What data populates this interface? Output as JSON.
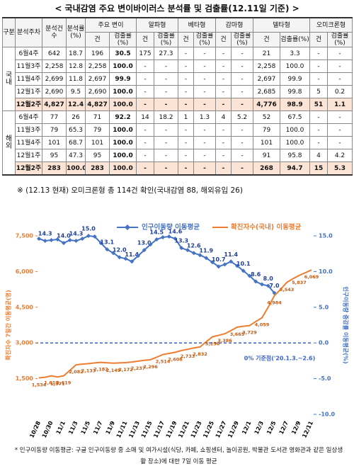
{
  "title": "< 국내감염 주요 변이바이러스 분석률 및 검출률(12.11일 기준) >",
  "table": {
    "header": [
      "구분",
      "분석주차",
      "분석건수",
      "분석률(%)",
      "주요 변이",
      "알파형",
      "베타형",
      "감마형",
      "델타형",
      "오미크론형"
    ],
    "subheader": [
      "건",
      "검출률(%)",
      "건",
      "검출률(%)",
      "건",
      "검출률(%)",
      "건",
      "검출률(%)",
      "건",
      "검출률(%)",
      "건",
      "검출률(%)"
    ],
    "groups": [
      {
        "label": "국내",
        "rows": [
          [
            "6월4주",
            "642",
            "18.7",
            "196",
            "30.5",
            "175",
            "27.3",
            "-",
            "-",
            "-",
            "-",
            "21",
            "3.3",
            "-",
            "-"
          ],
          [
            "11월3주",
            "2,258",
            "12.8",
            "2,258",
            "100.0",
            "-",
            "-",
            "-",
            "-",
            "-",
            "-",
            "2,258",
            "100.0",
            "-",
            "-"
          ],
          [
            "11월4주",
            "2,699",
            "11.8",
            "2,697",
            "99.9",
            "-",
            "-",
            "-",
            "-",
            "-",
            "-",
            "2,697",
            "99.9",
            "-",
            "-"
          ],
          [
            "12월1주",
            "2,690",
            "9.5",
            "2,690",
            "100.0",
            "-",
            "-",
            "-",
            "-",
            "-",
            "-",
            "2,685",
            "99.8",
            "5",
            "0.2"
          ],
          [
            "12월2주",
            "4,827",
            "12.4",
            "4,827",
            "100.0",
            "-",
            "-",
            "-",
            "-",
            "-",
            "-",
            "4,776",
            "98.9",
            "51",
            "1.1"
          ]
        ]
      },
      {
        "label": "해외",
        "rows": [
          [
            "6월4주",
            "77",
            "26",
            "71",
            "92.2",
            "14",
            "18.2",
            "1",
            "1.3",
            "4",
            "5.2",
            "52",
            "67.5",
            "-",
            "-"
          ],
          [
            "11월3주",
            "79",
            "65.3",
            "79",
            "100.0",
            "-",
            "-",
            "-",
            "-",
            "-",
            "-",
            "79",
            "100.0",
            "-",
            "-"
          ],
          [
            "11월4주",
            "101",
            "68.7",
            "101",
            "100.0",
            "-",
            "-",
            "-",
            "-",
            "-",
            "-",
            "101",
            "100.0",
            "-",
            "-"
          ],
          [
            "12월1주",
            "95",
            "47.3",
            "95",
            "100.0",
            "-",
            "-",
            "-",
            "-",
            "-",
            "-",
            "91",
            "95.8",
            "4",
            "4.2"
          ],
          [
            "12월2주",
            "283",
            "100.0",
            "283",
            "100.0",
            "-",
            "-",
            "-",
            "-",
            "-",
            "-",
            "268",
            "94.7",
            "15",
            "5.3"
          ]
        ]
      }
    ]
  },
  "note": "※ (12.13 현재) 오미크론형 총 114건 확인(국내감염 88, 해외유입 26)",
  "chart_data": {
    "type": "line",
    "categories": [
      "10/28",
      null,
      "10/30",
      null,
      "11/1",
      null,
      "11/3",
      null,
      "11/5",
      null,
      "11/7",
      null,
      "11/9",
      null,
      "11/11",
      null,
      "11/13",
      null,
      "11/15",
      null,
      "11/17",
      null,
      "11/19",
      null,
      "11/21",
      null,
      "11/23",
      null,
      "11/25",
      null,
      "11/27",
      null,
      "11/29",
      null,
      "12/1",
      null,
      "12/3",
      null,
      "12/5",
      null,
      "12/7",
      null,
      "12/9",
      null,
      "12/11"
    ],
    "series": [
      {
        "name": "인구이동량 이동평균",
        "color": "#4472c4",
        "axis": "y2",
        "values": [
          14.6,
          14.3,
          14.4,
          14.5,
          14.0,
          14.4,
          14.3,
          14.6,
          15.0,
          14.9,
          14.0,
          13.1,
          12.6,
          12.0,
          11.8,
          11.4,
          12.2,
          13.0,
          13.8,
          14.5,
          14.8,
          14.9,
          14.6,
          13.3,
          13.0,
          12.6,
          12.3,
          11.9,
          11.3,
          10.7,
          11.0,
          11.4,
          10.8,
          10.1,
          9.4,
          8.6,
          8.2,
          8.0,
          7.0,
          null,
          null,
          null,
          null,
          null,
          null
        ],
        "value_labels": [
          null,
          "14.3",
          null,
          null,
          "14.0",
          null,
          "14.3",
          null,
          "15.0",
          null,
          null,
          "13.1",
          null,
          "12.0",
          null,
          "11.4",
          null,
          "13.0",
          null,
          "14.5",
          null,
          null,
          "14.6",
          "13.3",
          null,
          "12.6",
          null,
          "11.9",
          null,
          "10.7",
          null,
          "11.4",
          null,
          "10.1",
          null,
          "8.6",
          null,
          "8.0",
          "7.0",
          null,
          null,
          null,
          null,
          null,
          null
        ]
      },
      {
        "name": "확진자수(국내) 이동평균",
        "color": "#ed7d31",
        "values": [
          1534,
          1560,
          1617,
          1571,
          1619,
          1850,
          2082,
          2110,
          2133,
          2160,
          2182,
          2165,
          2149,
          2160,
          2172,
          2200,
          2237,
          2270,
          2296,
          2400,
          2514,
          2560,
          2608,
          2680,
          2733,
          2790,
          2832,
          3050,
          3256,
          3320,
          3386,
          3520,
          3665,
          3700,
          3729,
          3900,
          4059,
          4500,
          4984,
          5250,
          5543,
          5700,
          5837,
          5950,
          6069
        ],
        "value_labels": [
          "1,534",
          null,
          "1,617",
          "1,571",
          "1,619",
          null,
          "2,082",
          null,
          "2,133",
          null,
          "2,182",
          null,
          "2,149",
          null,
          "2,172",
          null,
          "2,237",
          null,
          "2,296",
          null,
          "2,514",
          null,
          "2,608",
          null,
          "2,733",
          null,
          "2,832",
          null,
          "3,256",
          null,
          "3,386",
          null,
          "3,665",
          null,
          "3,729",
          null,
          "4,059",
          null,
          "4,984",
          null,
          "5,543",
          null,
          "5,837",
          null,
          "6,069"
        ]
      }
    ],
    "ylabel": "확진자수 7일간 이동평균(명)",
    "y2label": "인구이동량 증감률 이동평균(%)",
    "ylim": [
      0,
      7500
    ],
    "yticks": [
      {
        "value": 1500,
        "label": "1,500"
      },
      {
        "value": 3000,
        "label": "3,000"
      },
      {
        "value": 4500,
        "label": "4,500"
      },
      {
        "value": 6000,
        "label": "6,000"
      },
      {
        "value": 7500,
        "label": "7,500"
      }
    ],
    "y2lim": [
      -10,
      15
    ],
    "y2ticks": [
      {
        "value": -10,
        "label": "-10.0"
      },
      {
        "value": -5,
        "label": "-5.0"
      },
      {
        "value": 0,
        "label": "0.0"
      },
      {
        "value": 5,
        "label": "5.0"
      },
      {
        "value": 10,
        "label": "10.0"
      },
      {
        "value": 15,
        "label": "15.0"
      }
    ],
    "annotation": "0% 기준점('20.1.3.~2.6)"
  },
  "footnote": "* 인구이동량 이동평균: 구글 인구이동량 중 소매 및 여가시설(식당, 카페, 쇼핑센터, 놀이공원, 박물관 도서관 영화관과 같은 일상생활 장소)에 대한 7일 이동 평균"
}
